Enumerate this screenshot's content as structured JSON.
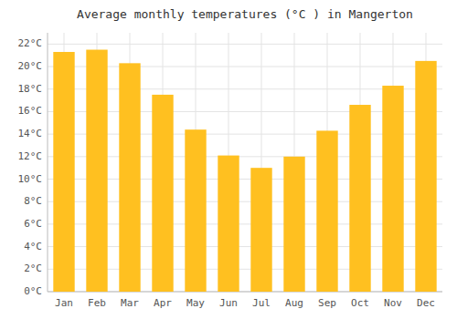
{
  "chart_data": {
    "type": "bar",
    "title": "Average monthly temperatures (°C ) in Mangerton",
    "categories": [
      "Jan",
      "Feb",
      "Mar",
      "Apr",
      "May",
      "Jun",
      "Jul",
      "Aug",
      "Sep",
      "Oct",
      "Nov",
      "Dec"
    ],
    "values": [
      21.3,
      21.5,
      20.3,
      17.5,
      14.4,
      12.1,
      11.0,
      12.0,
      14.3,
      16.6,
      18.3,
      20.5
    ],
    "color": "#FFC020",
    "ylim": [
      0,
      23
    ],
    "yticks": [
      {
        "value": 0,
        "label": "0°C"
      },
      {
        "value": 2,
        "label": "2°C"
      },
      {
        "value": 4,
        "label": "4°C"
      },
      {
        "value": 6,
        "label": "6°C"
      },
      {
        "value": 8,
        "label": "8°C"
      },
      {
        "value": 10,
        "label": "10°C"
      },
      {
        "value": 12,
        "label": "12°C"
      },
      {
        "value": 14,
        "label": "14°C"
      },
      {
        "value": 16,
        "label": "16°C"
      },
      {
        "value": 18,
        "label": "18°C"
      },
      {
        "value": 20,
        "label": "20°C"
      },
      {
        "value": 22,
        "label": "22°C"
      }
    ],
    "grid": true
  }
}
